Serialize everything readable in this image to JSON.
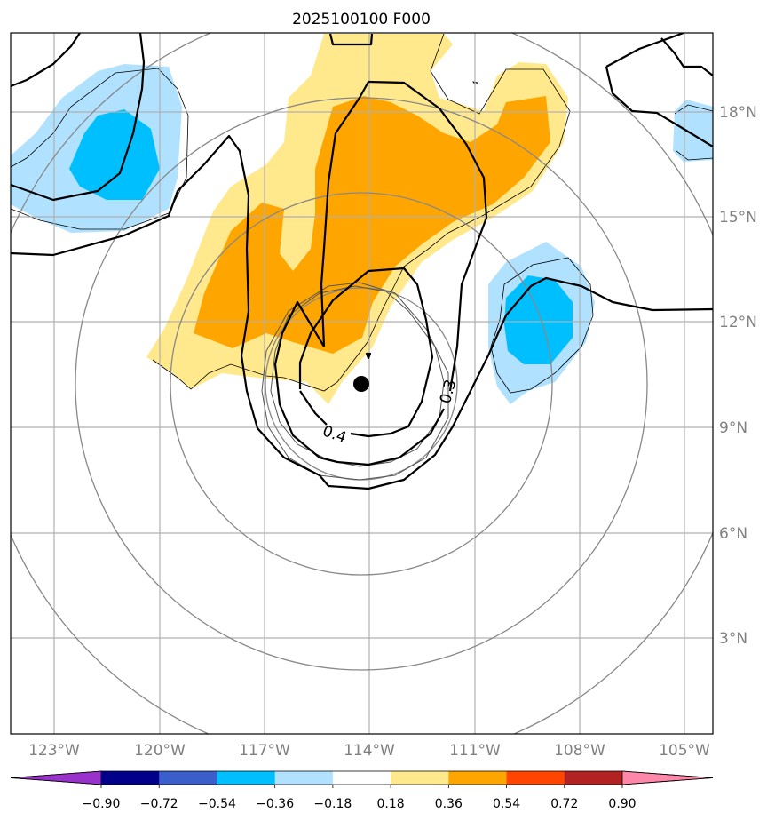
{
  "title": "2025100100 F000",
  "map": {
    "lon_labels": [
      "123°W",
      "120°W",
      "117°W",
      "114°W",
      "111°W",
      "108°W",
      "105°W"
    ],
    "lat_labels": [
      "18°N",
      "15°N",
      "12°N",
      "9°N",
      "6°N",
      "3°N"
    ],
    "storm_center": {
      "lon": -114.2,
      "lat": 10.2
    },
    "contour_labels": [
      "0.4",
      "0.3"
    ]
  },
  "colorbar": {
    "ticks": [
      "−0.90",
      "−0.72",
      "−0.54",
      "−0.36",
      "−0.18",
      "0.18",
      "0.36",
      "0.54",
      "0.72",
      "0.90"
    ],
    "colors": [
      "#9932cc",
      "#00008b",
      "#3a5fcd",
      "#00bfff",
      "#b0e2ff",
      "#ffffff",
      "#ffe98c",
      "#ffa500",
      "#ff4500",
      "#b22222",
      "#ff88aa"
    ]
  },
  "colors": {
    "light_blue": "#b0e2ff",
    "blue": "#00bfff",
    "light_yellow": "#ffe98c",
    "orange": "#ffa500",
    "grid": "#b0b0b0",
    "ring": "#888888"
  }
}
